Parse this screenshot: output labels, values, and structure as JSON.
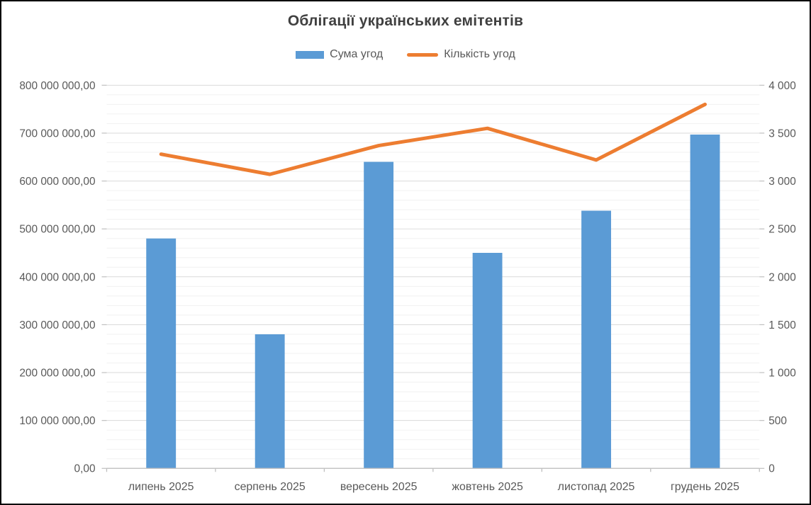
{
  "title": "Облігації українських емітентів",
  "legend": {
    "items": [
      {
        "label": "Сума угод",
        "swatch": "bar",
        "color": "#5B9BD5"
      },
      {
        "label": "Кількість угод",
        "swatch": "line",
        "color": "#ED7D31"
      }
    ]
  },
  "chart_data": {
    "type": "combo_bar_line",
    "title": "Облігації українських емітентів",
    "categories": [
      "липень 2025",
      "серпень 2025",
      "вересень 2025",
      "жовтень 2025",
      "листопад 2025",
      "грудень 2025"
    ],
    "series": [
      {
        "name": "Сума угод",
        "type": "bar",
        "axis": "left",
        "color": "#5B9BD5",
        "values": [
          480000000,
          280000000,
          640000000,
          450000000,
          538000000,
          697000000
        ]
      },
      {
        "name": "Кількість угод",
        "type": "line",
        "axis": "right",
        "color": "#ED7D31",
        "values": [
          3280,
          3070,
          3370,
          3550,
          3220,
          3800
        ]
      }
    ],
    "left_axis": {
      "min": 0,
      "max": 800000000,
      "major_step": 100000000,
      "minor_step": 20000000,
      "tick_labels": [
        "0,00",
        "100 000 000,00",
        "200 000 000,00",
        "300 000 000,00",
        "400 000 000,00",
        "500 000 000,00",
        "600 000 000,00",
        "700 000 000,00",
        "800 000 000,00"
      ]
    },
    "right_axis": {
      "min": 0,
      "max": 4000,
      "major_step": 500,
      "tick_labels": [
        "0",
        "500",
        "1 000",
        "1 500",
        "2 000",
        "2 500",
        "3 000",
        "3 500",
        "4 000"
      ]
    },
    "grid": {
      "horizontal_major": true,
      "horizontal_minor": true,
      "vertical": false
    },
    "legend_position": "top"
  },
  "colors": {
    "bar": "#5B9BD5",
    "line": "#ED7D31",
    "title_text": "#404040",
    "axis_text": "#595959",
    "grid_major": "#D9D9D9",
    "grid_minor": "#F1F1F1",
    "axis_line": "#BFBFBF",
    "frame_border": "#000000",
    "background": "#FFFFFF"
  }
}
